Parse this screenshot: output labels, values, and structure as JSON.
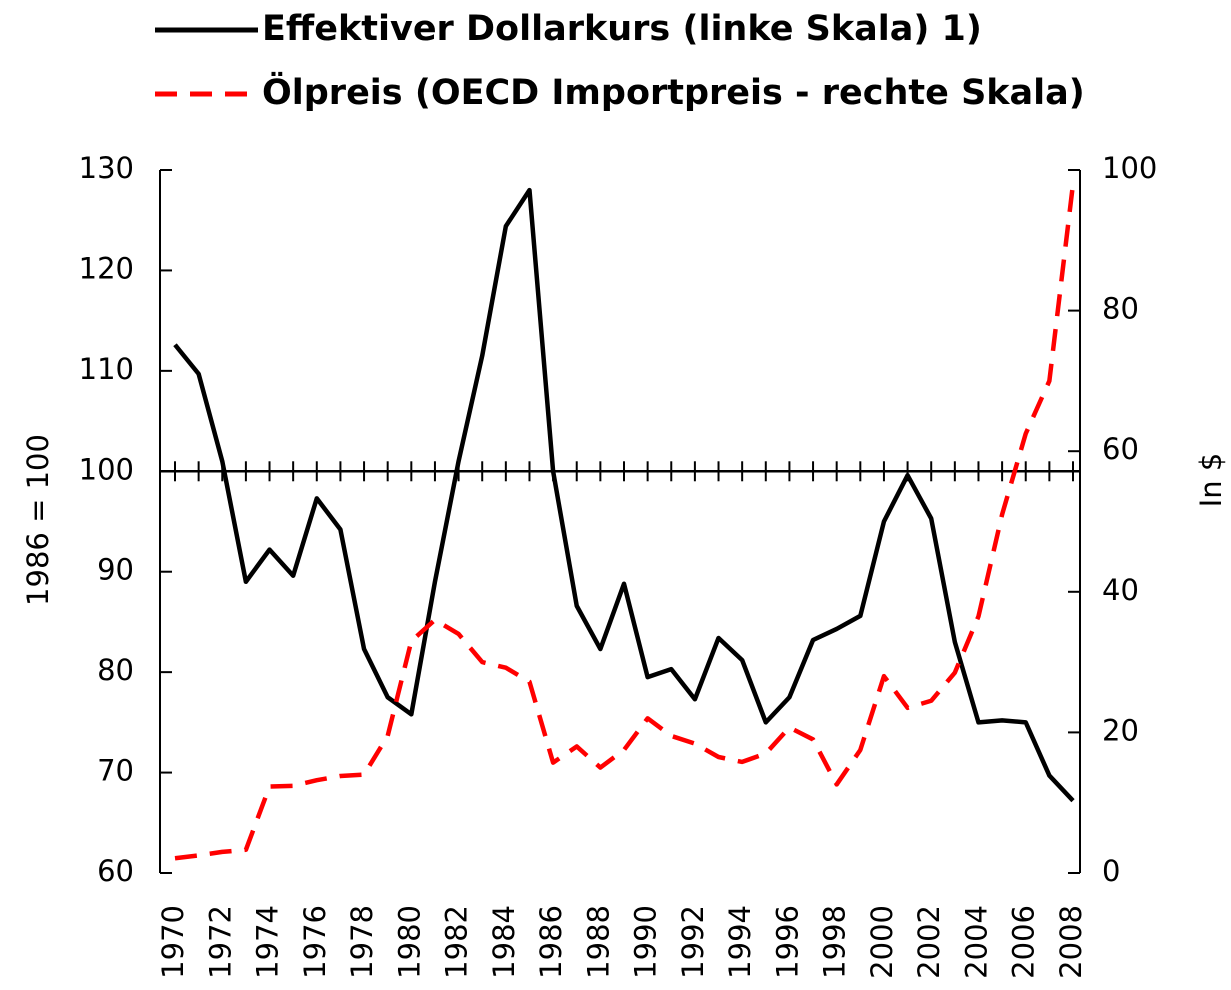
{
  "chart_data": {
    "type": "line",
    "y_label": "1986 = 100",
    "y2_label": "In $",
    "categories": [
      "1970",
      null,
      "1972",
      null,
      "1974",
      null,
      "1976",
      null,
      "1978",
      null,
      "1980",
      null,
      "1982",
      null,
      "1984",
      null,
      "1986",
      null,
      "1988",
      null,
      "1990",
      null,
      "1992",
      null,
      "1994",
      null,
      "1996",
      null,
      "1998",
      null,
      "2000",
      null,
      "2002",
      null,
      "2004",
      null,
      "2006",
      null,
      "2008"
    ],
    "series": [
      {
        "name": "Effektiver Dollarkurs (linke Skala) 1)",
        "color": "#000000",
        "dash": "solid",
        "values": [
          112.6,
          109.7,
          101,
          89.0,
          92.2,
          89.6,
          97.3,
          94.2,
          82.3,
          77.5,
          75.8,
          89,
          101,
          111.5,
          124.4,
          128.0,
          100,
          86.6,
          82.3,
          88.8,
          79.5,
          80.3,
          77.3,
          83.4,
          81.2,
          75.0,
          77.5,
          83.2,
          84.3,
          85.6,
          95,
          99.6,
          95.3,
          83,
          75,
          75.2,
          75,
          69.7,
          67.2
        ]
      },
      {
        "name": "Ölpreis (OECD Importpreis - rechte Skala)",
        "color": "#ff0000",
        "dash": "dashed",
        "axis": "y2",
        "values": [
          2.1,
          2.5,
          3,
          3.3,
          12.3,
          12.4,
          13.2,
          13.8,
          14,
          19.5,
          33,
          36,
          34,
          30,
          29.2,
          27.2,
          15.7,
          18,
          15,
          17.5,
          22,
          19.5,
          18.4,
          16.5,
          15.8,
          17,
          20.7,
          19,
          12.6,
          17.5,
          28,
          23.5,
          24.5,
          28.5,
          36.5,
          51,
          62.5,
          70,
          98
        ]
      }
    ],
    "ylim": [
      60,
      130
    ],
    "yticks": [
      60,
      70,
      80,
      90,
      100,
      110,
      120,
      130
    ],
    "y2lim": [
      0,
      100
    ],
    "y2ticks": [
      0,
      20,
      40,
      60,
      80,
      100
    ],
    "x_axis_crosses": 100,
    "legend": "top",
    "grid": false
  }
}
